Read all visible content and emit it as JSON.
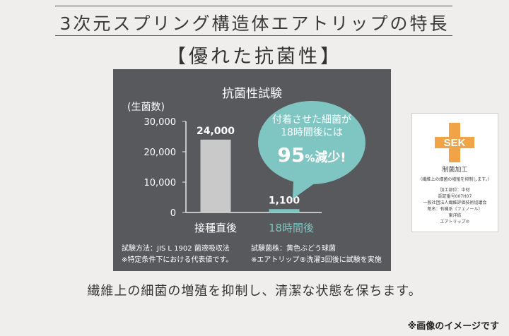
{
  "header": {
    "title": "3次元スプリング構造体エアトリップの特長",
    "subtitle": "【優れた抗菌性】"
  },
  "chart_data": {
    "type": "bar",
    "title": "抗菌性試験",
    "ylabel": "(生菌数)",
    "categories": [
      "接種直後",
      "18時間後"
    ],
    "values": [
      24000,
      1100
    ],
    "value_labels": [
      "24,000",
      "1,100"
    ],
    "yticks": [
      "30,000",
      "20,000",
      "10,000",
      "0"
    ],
    "ylim": [
      0,
      30000
    ],
    "colors": {
      "bar1": "#c9c9c9",
      "bar2": "#7fc6c2",
      "cat2_text": "#7fc6c2",
      "panel": "#57595c",
      "axis": "#e9e9e9"
    },
    "callout": {
      "line1": "付着させた細菌が",
      "line2": "18時間後には",
      "pct_num": "95",
      "pct_sign": "%",
      "reduction": "減少!"
    }
  },
  "notes": {
    "method": "試験方法：JIS L 1902 菌液吸収法",
    "bacteria": "試験菌株：黄色ぶどう球菌",
    "note1": "※特定条件下における代表値です。",
    "note2": "※エアトリップ®洗濯3回後に試験を実施"
  },
  "sek": {
    "logo_text": "SEK",
    "line1": "制菌加工",
    "line2": "（繊維上の細菌の増殖を抑制します。）",
    "line3": "加工部位：中材",
    "line4": "認証番号007H07",
    "line5": "一般社団法人繊維評価技術協議会",
    "line6": "剤名：有機系（フェノール）",
    "line7": "東洋紡",
    "line8": "エアトリップ®",
    "color": "#f0a347"
  },
  "footer": {
    "text": "繊維上の細菌の増殖を抑制し、清潔な状態を保ちます。",
    "disclaimer": "※画像のイメージです"
  }
}
